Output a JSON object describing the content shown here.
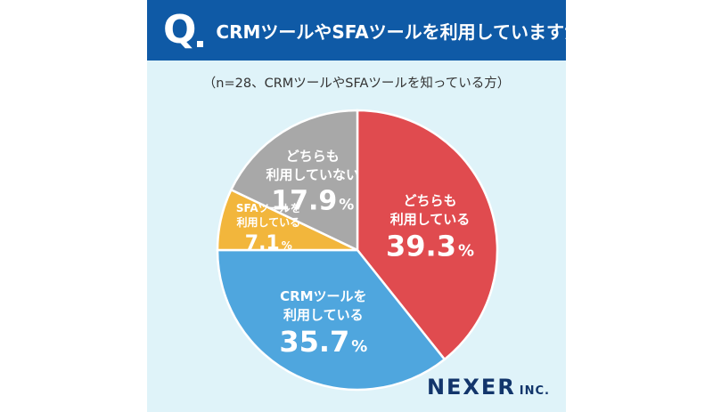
{
  "header": {
    "q_label": "Q",
    "question": "CRMツールやSFAツールを利用していますか？"
  },
  "subtitle": "（n=28、CRMツールやSFAツールを知っている方）",
  "brand": {
    "name": "NEXER",
    "suffix": "INC."
  },
  "colors": {
    "header_bg": "#0f5aa6",
    "card_bg": "#dff3f9",
    "logo": "#12356b"
  },
  "chart_data": {
    "type": "pie",
    "start_angle_deg": 0,
    "direction": "clockwise",
    "slices": [
      {
        "label_lines": [
          "どちらも",
          "利用している"
        ],
        "value": 39.3,
        "value_text": "39.3",
        "unit": "%",
        "color": "#e04b4f"
      },
      {
        "label_lines": [
          "CRMツールを",
          "利用している"
        ],
        "value": 35.7,
        "value_text": "35.7",
        "unit": "%",
        "color": "#4fa6de"
      },
      {
        "label_lines": [
          "SFAツールを",
          "利用している"
        ],
        "value": 7.1,
        "value_text": "7.1",
        "unit": "%",
        "color": "#f2b63c"
      },
      {
        "label_lines": [
          "どちらも",
          "利用していない"
        ],
        "value": 17.9,
        "value_text": "17.9",
        "unit": "%",
        "color": "#a8a8a8"
      }
    ]
  }
}
